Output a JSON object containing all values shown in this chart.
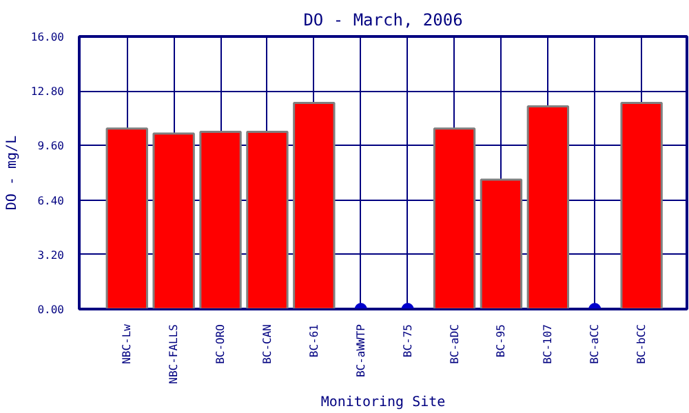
{
  "chart_data": {
    "type": "bar",
    "title": "DO - March, 2006",
    "xlabel": "Monitoring Site",
    "ylabel": "DO - mg/L",
    "categories": [
      "NBC-Lw",
      "NBC-FALLS",
      "BC-ORO",
      "BC-CAN",
      "BC-61",
      "BC-aWWTP",
      "BC-75",
      "BC-aDC",
      "BC-95",
      "BC-107",
      "BC-aCC",
      "BC-bCC"
    ],
    "series": [
      {
        "color": "#ff0000",
        "values": [
          10.6,
          10.3,
          10.4,
          10.4,
          12.1,
          null,
          null,
          10.6,
          7.6,
          11.9,
          null,
          12.1
        ]
      },
      {
        "type": "scatter",
        "color": "#0000cc",
        "x": [
          "BC-aWWTP",
          "BC-75",
          "BC-aCC"
        ],
        "values": [
          0,
          0,
          0
        ]
      }
    ],
    "ylim": [
      0,
      16
    ],
    "yticks": [
      {
        "value": 0,
        "label": "0.00"
      },
      {
        "value": 3.2,
        "label": "3.20"
      },
      {
        "value": 6.4,
        "label": "6.40"
      },
      {
        "value": 9.6,
        "label": "9.60"
      },
      {
        "value": 12.8,
        "label": "12.80"
      },
      {
        "value": 16,
        "label": "16.00"
      }
    ],
    "grid": true,
    "marker": "circle"
  }
}
